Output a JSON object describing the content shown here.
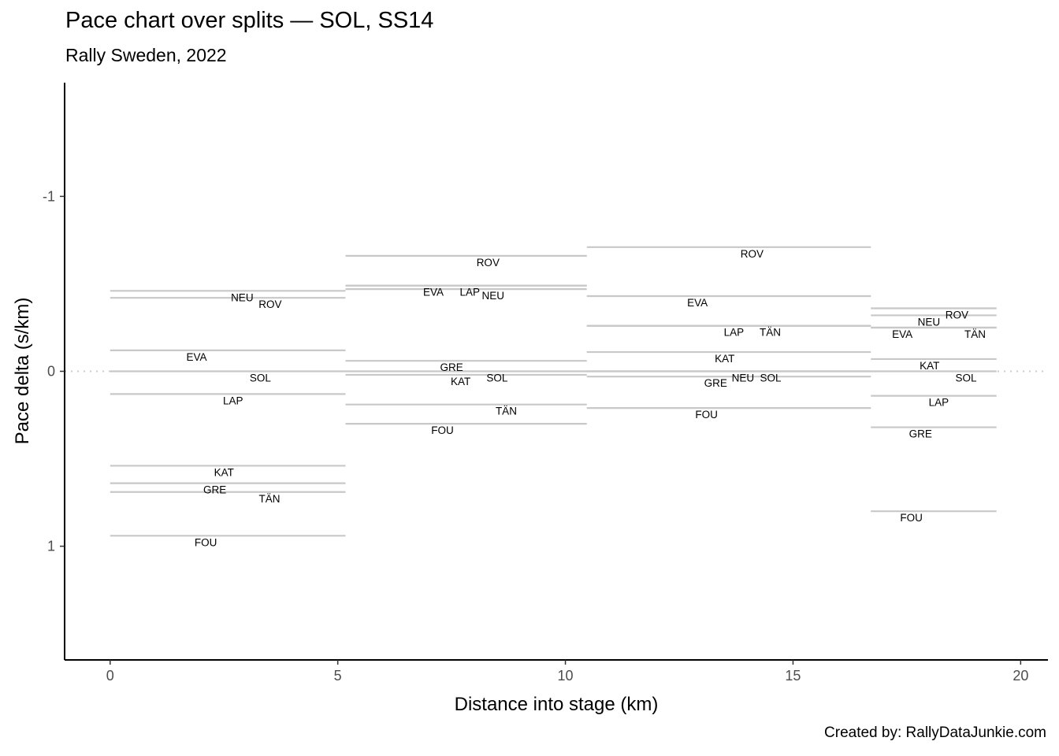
{
  "chart_data": {
    "type": "line",
    "title": "Pace chart over splits — SOL, SS14",
    "subtitle": "Rally Sweden, 2022",
    "caption": "Created by: RallyDataJunkie.com",
    "xlabel": "Distance into stage (km)",
    "ylabel": "Pace delta (s/km)",
    "xlim": [
      -1.0,
      20.6
    ],
    "ylim": [
      -1.65,
      1.65
    ],
    "y_reversed": true,
    "xticks": [
      0,
      5,
      10,
      15,
      20
    ],
    "yticks": [
      -1,
      0,
      1
    ],
    "reference_line": 0,
    "grid": false,
    "segments": [
      {
        "start": 0,
        "end": 5.17,
        "drivers": [
          {
            "code": "NEU",
            "delta": -0.46,
            "label_x": 2.9
          },
          {
            "code": "ROV",
            "delta": -0.42,
            "label_x": 3.1
          },
          {
            "code": "EVA",
            "delta": -0.12,
            "label_x": 1.9
          },
          {
            "code": "SOL",
            "delta": 0.0,
            "label_x": 3.3
          },
          {
            "code": "LAP",
            "delta": 0.13,
            "label_x": 2.7
          },
          {
            "code": "KAT",
            "delta": 0.54,
            "label_x": 2.5
          },
          {
            "code": "GRE",
            "delta": 0.64,
            "label_x": 2.3
          },
          {
            "code": "TÄN",
            "delta": 0.69,
            "label_x": 3.5
          },
          {
            "code": "FOU",
            "delta": 0.94,
            "label_x": 2.1
          }
        ]
      },
      {
        "start": 5.17,
        "end": 10.47,
        "drivers": [
          {
            "code": "ROV",
            "delta": -0.66,
            "label_x": 8.3
          },
          {
            "code": "EVA",
            "delta": -0.49,
            "label_x": 7.1
          },
          {
            "code": "LAP",
            "delta": -0.49,
            "label_x": 7.9
          },
          {
            "code": "NEU",
            "delta": -0.47,
            "label_x": 8.1
          },
          {
            "code": "GRE",
            "delta": -0.06,
            "label_x": 7.5
          },
          {
            "code": "SOL",
            "delta": 0.0,
            "label_x": 8.5
          },
          {
            "code": "KAT",
            "delta": 0.02,
            "label_x": 7.7
          },
          {
            "code": "TÄN",
            "delta": 0.19,
            "label_x": 8.7
          },
          {
            "code": "FOU",
            "delta": 0.3,
            "label_x": 7.3
          }
        ]
      },
      {
        "start": 10.47,
        "end": 16.71,
        "drivers": [
          {
            "code": "ROV",
            "delta": -0.71,
            "label_x": 14.1
          },
          {
            "code": "EVA",
            "delta": -0.43,
            "label_x": 12.9
          },
          {
            "code": "LAP",
            "delta": -0.26,
            "label_x": 13.7
          },
          {
            "code": "TÄN",
            "delta": -0.26,
            "label_x": 14.5
          },
          {
            "code": "KAT",
            "delta": -0.11,
            "label_x": 13.5
          },
          {
            "code": "NEU",
            "delta": 0.0,
            "label_x": 13.9
          },
          {
            "code": "SOL",
            "delta": 0.0,
            "label_x": 14.3
          },
          {
            "code": "GRE",
            "delta": 0.03,
            "label_x": 13.3
          },
          {
            "code": "FOU",
            "delta": 0.21,
            "label_x": 13.1
          }
        ]
      },
      {
        "start": 16.71,
        "end": 19.47,
        "drivers": [
          {
            "code": "ROV",
            "delta": -0.36,
            "label_x": 18.6
          },
          {
            "code": "NEU",
            "delta": -0.32,
            "label_x": 18.4
          },
          {
            "code": "TÄN",
            "delta": -0.25,
            "label_x": 19.0
          },
          {
            "code": "EVA",
            "delta": -0.25,
            "label_x": 17.4
          },
          {
            "code": "KAT",
            "delta": -0.07,
            "label_x": 18.0
          },
          {
            "code": "SOL",
            "delta": 0.0,
            "label_x": 18.8
          },
          {
            "code": "LAP",
            "delta": 0.14,
            "label_x": 18.2
          },
          {
            "code": "GRE",
            "delta": 0.32,
            "label_x": 17.8
          },
          {
            "code": "FOU",
            "delta": 0.8,
            "label_x": 17.6
          }
        ]
      }
    ],
    "colors": {
      "segment_line": "#c8c8c8",
      "reference": "#cccccc",
      "axis": "#000000"
    }
  }
}
